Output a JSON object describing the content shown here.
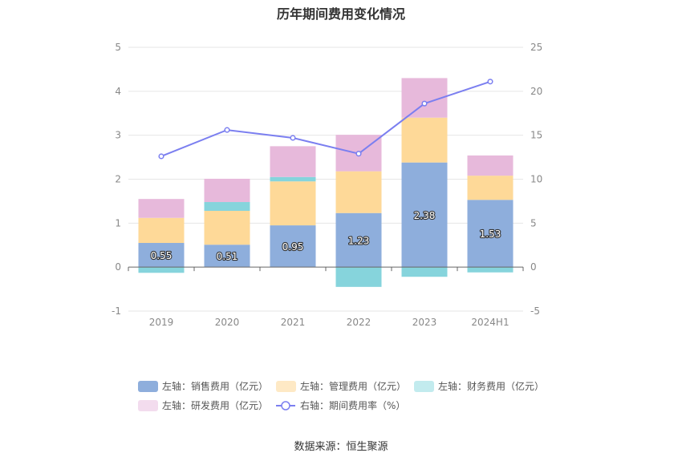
{
  "chart_data": {
    "type": "bar",
    "title": "历年期间费用变化情况",
    "categories": [
      "2019",
      "2020",
      "2021",
      "2022",
      "2023",
      "2024H1"
    ],
    "left_axis": {
      "ylim": [
        -1,
        5
      ],
      "ticks": [
        "-1",
        "0",
        "1",
        "2",
        "3",
        "4",
        "5"
      ]
    },
    "right_axis": {
      "ylim": [
        -5,
        25
      ],
      "ticks": [
        "-5",
        "0",
        "5",
        "10",
        "15",
        "20",
        "25"
      ]
    },
    "stacked": true,
    "series": [
      {
        "name": "左轴：销售费用（亿元）",
        "axis": "left",
        "color": "#8eaedc",
        "values": [
          0.55,
          0.51,
          0.95,
          1.23,
          2.38,
          1.53
        ],
        "labels": [
          "0.55",
          "0.51",
          "0.95",
          "1.23",
          "2.38",
          "1.53"
        ]
      },
      {
        "name": "左轴：管理费用（亿元）",
        "axis": "left",
        "color": "#fed998",
        "values": [
          0.57,
          0.77,
          1.0,
          0.95,
          1.02,
          0.55
        ]
      },
      {
        "name": "左轴：财务费用（亿元）",
        "axis": "left",
        "color": "#86d4dc",
        "values": [
          -0.13,
          0.2,
          0.1,
          -0.45,
          -0.22,
          -0.12
        ]
      },
      {
        "name": "左轴：研发费用（亿元）",
        "axis": "left",
        "color": "#e7b9db",
        "values": [
          0.43,
          0.53,
          0.7,
          0.83,
          0.9,
          0.46
        ]
      },
      {
        "name": "右轴：期间费用率（%）",
        "axis": "right",
        "type": "line",
        "color": "#7b7ff0",
        "values": [
          12.6,
          15.6,
          14.7,
          12.9,
          18.6,
          21.1
        ]
      }
    ],
    "grid": true,
    "legend_position": "bottom",
    "source": "数据来源：恒生聚源"
  }
}
